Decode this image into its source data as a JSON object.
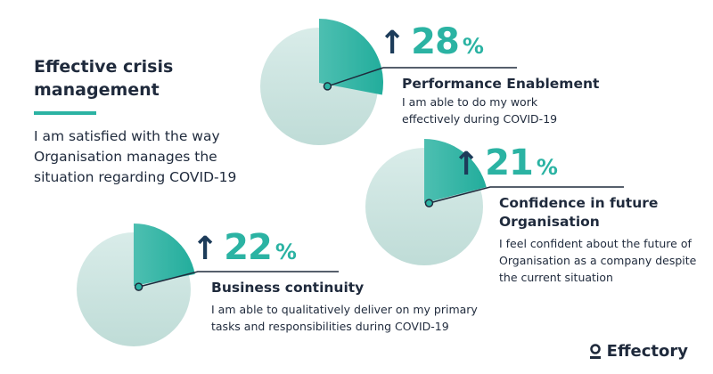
{
  "header": {
    "title": "Effective crisis management",
    "subtitle": "I am satisfied with the way Organisation manages the situation regarding COVID-19"
  },
  "colors": {
    "slice": "#2bb3a3",
    "pie": "#cfe6e2",
    "arrow": "#1d3c5a",
    "text": "#1f2a3c"
  },
  "chart_data": {
    "type": "pie",
    "items": [
      {
        "value": 28,
        "label": "28",
        "unit": "%",
        "trend": "up",
        "title": "Performance Enablement",
        "description": "I am able to do my work effectively during COVID-19"
      },
      {
        "value": 21,
        "label": "21",
        "unit": "%",
        "trend": "up",
        "title": "Confidence in future Organisation",
        "description": "I feel confident about the future of Organisation as a company despite the current situation"
      },
      {
        "value": 22,
        "label": "22",
        "unit": "%",
        "trend": "up",
        "title": "Business continuity",
        "description": "I am able to qualitatively deliver on my primary tasks and responsibilities during COVID-19"
      }
    ]
  },
  "logo": {
    "text": "Effectory",
    "icon": "person-pin-icon"
  }
}
